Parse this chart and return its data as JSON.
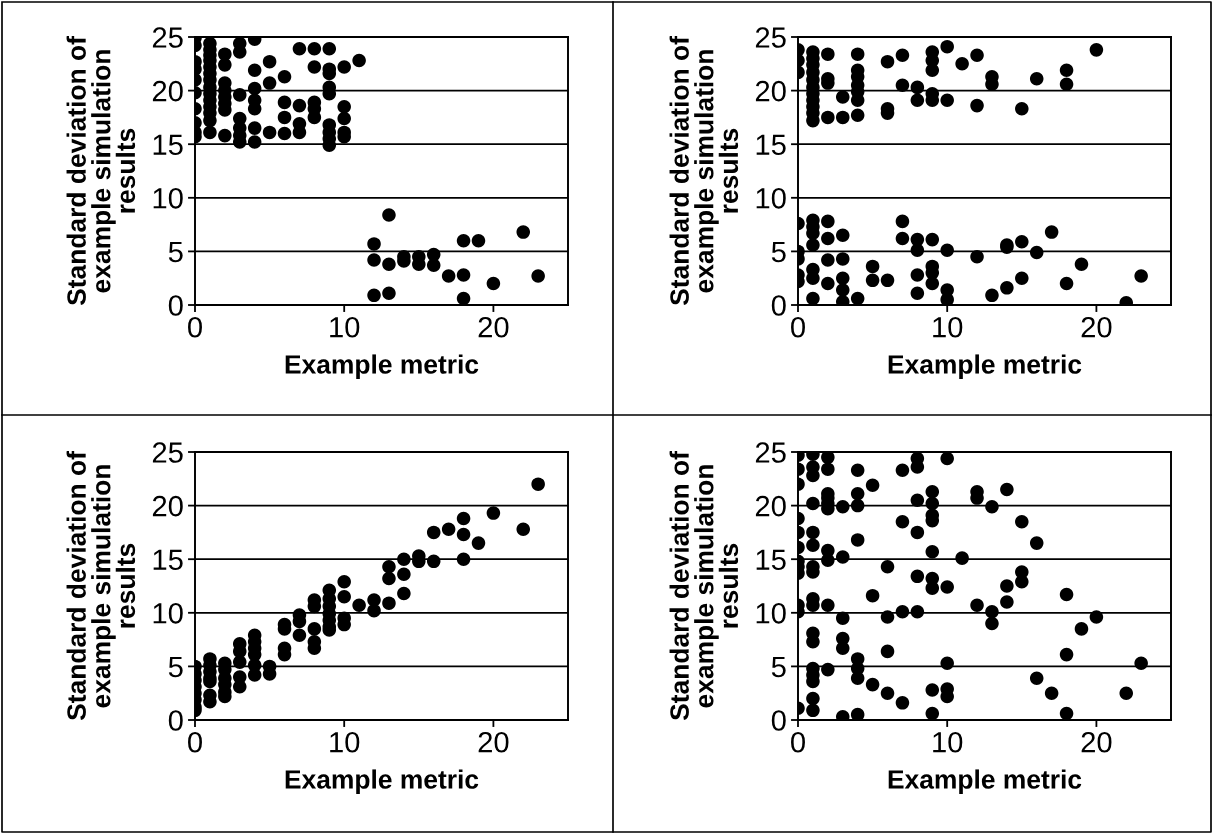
{
  "chart_data": [
    {
      "type": "scatter",
      "xlabel": "Example metric",
      "ylabel": "Standard deviation of\nexample simulation\nresults",
      "color": "#000000",
      "marker": "circle",
      "grid": "y",
      "xlim": [
        0,
        25
      ],
      "ylim": [
        0,
        25
      ],
      "xticks": [
        0,
        10,
        20
      ],
      "yticks": [
        0,
        5,
        10,
        15,
        20,
        25
      ],
      "x": [
        0,
        0,
        0,
        0,
        0,
        0,
        0,
        0,
        0,
        0,
        1,
        1,
        1,
        1,
        1,
        1,
        1,
        1,
        1,
        1,
        1,
        1,
        1,
        1,
        2,
        2,
        2,
        2,
        2,
        2,
        2,
        2,
        3,
        3,
        3,
        3,
        3,
        3,
        3,
        4,
        4,
        4,
        4,
        4,
        4,
        4,
        5,
        5,
        5,
        6,
        6,
        6,
        6,
        7,
        7,
        7,
        7,
        8,
        8,
        8,
        8,
        8,
        9,
        9,
        9,
        9,
        9,
        9,
        9,
        9,
        9,
        10,
        10,
        10,
        10,
        10,
        11,
        12,
        12,
        12,
        13,
        13,
        13,
        14,
        14,
        15,
        15,
        16,
        16,
        17,
        18,
        18,
        18,
        19,
        20,
        22,
        23
      ],
      "values": [
        24.9,
        24.2,
        22.7,
        22.0,
        21.0,
        19.8,
        18.3,
        17.0,
        16.1,
        15.7,
        24.4,
        23.8,
        23.3,
        22.8,
        22.2,
        21.6,
        21.0,
        20.3,
        19.7,
        19.1,
        18.5,
        17.9,
        17.2,
        16.1,
        23.4,
        22.4,
        20.7,
        20.0,
        19.4,
        18.8,
        18.2,
        15.8,
        24.4,
        23.6,
        19.6,
        17.4,
        16.5,
        15.8,
        15.2,
        24.8,
        21.9,
        20.2,
        19.1,
        18.3,
        16.5,
        15.2,
        22.7,
        20.7,
        16.1,
        21.3,
        18.9,
        17.5,
        16.0,
        23.9,
        18.6,
        16.9,
        16.1,
        23.9,
        22.2,
        18.9,
        18.3,
        17.5,
        23.9,
        22.0,
        21.6,
        20.3,
        19.7,
        16.8,
        16.1,
        15.5,
        14.9,
        22.2,
        18.5,
        17.4,
        16.1,
        15.7,
        22.8,
        5.7,
        4.2,
        0.9,
        8.4,
        3.8,
        1.1,
        4.5,
        4.1,
        4.5,
        3.8,
        4.7,
        3.7,
        2.7,
        6.0,
        2.8,
        0.6,
        6.0,
        2.0,
        6.8,
        2.7
      ]
    },
    {
      "type": "scatter",
      "xlabel": "Example metric",
      "ylabel": "Standard deviation of\nexample simulation\nresults",
      "color": "#000000",
      "marker": "circle",
      "grid": "y",
      "xlim": [
        0,
        25
      ],
      "ylim": [
        0,
        25
      ],
      "xticks": [
        0,
        10,
        20
      ],
      "yticks": [
        0,
        5,
        10,
        15,
        20,
        25
      ],
      "x": [
        0,
        0,
        0,
        0,
        0,
        0,
        0,
        0,
        1,
        1,
        1,
        1,
        1,
        1,
        1,
        1,
        1,
        1,
        1,
        1,
        1,
        1,
        1,
        1,
        1,
        1,
        2,
        2,
        2,
        2,
        2,
        2,
        2,
        2,
        3,
        3,
        3,
        3,
        3,
        3,
        3,
        4,
        4,
        4,
        4,
        4,
        4,
        4,
        4,
        5,
        5,
        6,
        6,
        6,
        6,
        7,
        7,
        7,
        7,
        8,
        8,
        8,
        8,
        8,
        8,
        9,
        9,
        9,
        9,
        9,
        9,
        9,
        9,
        9,
        10,
        10,
        10,
        10,
        10,
        11,
        12,
        12,
        12,
        13,
        13,
        13,
        14,
        14,
        14,
        15,
        15,
        15,
        16,
        16,
        17,
        18,
        18,
        18,
        19,
        20,
        22,
        23
      ],
      "values": [
        23.8,
        22.8,
        21.7,
        7.6,
        5.0,
        4.3,
        2.8,
        2.2,
        23.6,
        23.0,
        22.4,
        21.7,
        21.0,
        20.3,
        19.7,
        19.1,
        18.5,
        17.9,
        17.2,
        7.9,
        7.3,
        6.7,
        5.6,
        3.3,
        2.5,
        0.6,
        23.4,
        21.1,
        20.7,
        17.5,
        7.8,
        6.2,
        4.2,
        2.0,
        19.4,
        17.5,
        6.5,
        4.3,
        2.5,
        1.4,
        0.3,
        23.4,
        21.9,
        21.3,
        20.5,
        19.9,
        19.1,
        17.7,
        0.6,
        3.6,
        2.3,
        22.7,
        18.3,
        17.9,
        2.3,
        23.3,
        20.5,
        7.8,
        6.2,
        20.3,
        19.1,
        6.1,
        5.1,
        2.8,
        1.1,
        23.6,
        22.8,
        21.9,
        19.7,
        19.1,
        6.1,
        3.6,
        3.0,
        2.0,
        24.1,
        19.1,
        5.1,
        1.4,
        0.5,
        22.5,
        23.3,
        18.6,
        4.5,
        21.3,
        20.6,
        0.9,
        5.6,
        5.4,
        1.6,
        18.3,
        5.9,
        2.5,
        21.1,
        4.9,
        6.8,
        21.9,
        20.6,
        2.0,
        3.8,
        23.8,
        0.2,
        2.7
      ]
    },
    {
      "type": "scatter",
      "xlabel": "Example metric",
      "ylabel": "Standard deviation of\nexample simulation\nresults",
      "color": "#000000",
      "marker": "circle",
      "grid": "y",
      "xlim": [
        0,
        25
      ],
      "ylim": [
        0,
        25
      ],
      "xticks": [
        0,
        10,
        20
      ],
      "yticks": [
        0,
        5,
        10,
        15,
        20,
        25
      ],
      "x": [
        0,
        0,
        0,
        0,
        0,
        0,
        0,
        0,
        1,
        1,
        1,
        1,
        1,
        1,
        1,
        2,
        2,
        2,
        2,
        2,
        2,
        3,
        3,
        3,
        3,
        3,
        4,
        4,
        4,
        4,
        4,
        4,
        5,
        5,
        6,
        6,
        6,
        6,
        7,
        7,
        7,
        8,
        8,
        8,
        8,
        8,
        9,
        9,
        9,
        9,
        9,
        9,
        9,
        10,
        10,
        10,
        10,
        11,
        12,
        12,
        13,
        13,
        13,
        14,
        14,
        14,
        15,
        15,
        16,
        16,
        17,
        18,
        18,
        18,
        19,
        20,
        22,
        23
      ],
      "values": [
        5.0,
        4.3,
        3.7,
        3.1,
        2.5,
        1.9,
        1.2,
        0.9,
        5.7,
        5.1,
        4.5,
        3.9,
        3.6,
        2.3,
        1.7,
        5.3,
        4.7,
        3.9,
        3.3,
        2.6,
        2.2,
        7.1,
        6.4,
        5.4,
        4.0,
        3.1,
        7.9,
        7.3,
        6.7,
        6.1,
        5.1,
        4.2,
        5.0,
        4.3,
        8.9,
        8.5,
        6.7,
        6.1,
        9.8,
        9.2,
        7.9,
        11.2,
        10.6,
        8.5,
        7.3,
        6.7,
        12.1,
        11.3,
        10.6,
        9.9,
        9.3,
        8.7,
        8.4,
        12.9,
        11.5,
        9.5,
        8.9,
        10.7,
        11.2,
        10.2,
        14.3,
        13.2,
        10.9,
        15.0,
        13.6,
        11.8,
        15.3,
        14.8,
        17.5,
        14.8,
        17.8,
        18.8,
        17.3,
        15.0,
        16.5,
        19.3,
        17.8,
        22.0
      ]
    },
    {
      "type": "scatter",
      "xlabel": "Example metric",
      "ylabel": "Standard deviation of\nexample simulation\nresults",
      "color": "#000000",
      "marker": "circle",
      "grid": "y",
      "xlim": [
        0,
        25
      ],
      "ylim": [
        0,
        25
      ],
      "xticks": [
        0,
        10,
        20
      ],
      "yticks": [
        0,
        5,
        10,
        15,
        20,
        25
      ],
      "x": [
        0,
        0,
        0,
        0,
        0,
        0,
        0,
        0,
        0,
        0,
        0,
        0,
        1,
        1,
        1,
        1,
        1,
        1,
        1,
        1,
        1,
        1,
        1,
        1,
        1,
        1,
        1,
        1,
        1,
        2,
        2,
        2,
        2,
        2,
        2,
        2,
        2,
        2,
        2,
        3,
        3,
        3,
        3,
        3,
        3,
        4,
        4,
        4,
        4,
        4,
        4,
        4,
        4,
        5,
        5,
        5,
        6,
        6,
        6,
        6,
        7,
        7,
        7,
        7,
        8,
        8,
        8,
        8,
        8,
        8,
        9,
        9,
        9,
        9,
        9,
        9,
        9,
        9,
        9,
        10,
        10,
        10,
        10,
        10,
        11,
        12,
        12,
        12,
        13,
        13,
        13,
        14,
        14,
        14,
        15,
        15,
        15,
        16,
        16,
        17,
        18,
        18,
        18,
        19,
        20,
        22,
        23
      ],
      "values": [
        24.7,
        23.4,
        22.0,
        18.8,
        17.5,
        16.1,
        14.8,
        14.3,
        13.7,
        10.7,
        10.1,
        1.1,
        24.8,
        23.6,
        22.8,
        20.2,
        17.5,
        16.3,
        14.3,
        13.8,
        11.3,
        10.7,
        8.1,
        7.3,
        4.8,
        4.2,
        3.6,
        2.0,
        0.9,
        24.5,
        23.4,
        21.1,
        20.7,
        20.2,
        19.7,
        15.8,
        14.9,
        10.7,
        4.7,
        19.9,
        15.2,
        9.5,
        7.6,
        6.7,
        0.3,
        23.3,
        21.1,
        20.0,
        16.8,
        5.7,
        4.8,
        3.9,
        0.5,
        21.9,
        11.6,
        3.3,
        14.3,
        9.6,
        6.4,
        2.5,
        23.3,
        18.5,
        10.1,
        1.6,
        24.4,
        23.6,
        20.5,
        17.5,
        13.4,
        10.1,
        21.3,
        20.2,
        19.1,
        18.6,
        15.7,
        13.2,
        12.3,
        2.8,
        0.6,
        24.4,
        12.4,
        5.3,
        2.9,
        2.2,
        15.1,
        21.3,
        20.7,
        10.7,
        19.9,
        10.1,
        9.0,
        21.5,
        12.5,
        11.0,
        18.5,
        13.8,
        12.9,
        16.5,
        3.9,
        2.5,
        11.7,
        6.1,
        0.6,
        8.5,
        9.6,
        2.5,
        5.3
      ]
    }
  ]
}
